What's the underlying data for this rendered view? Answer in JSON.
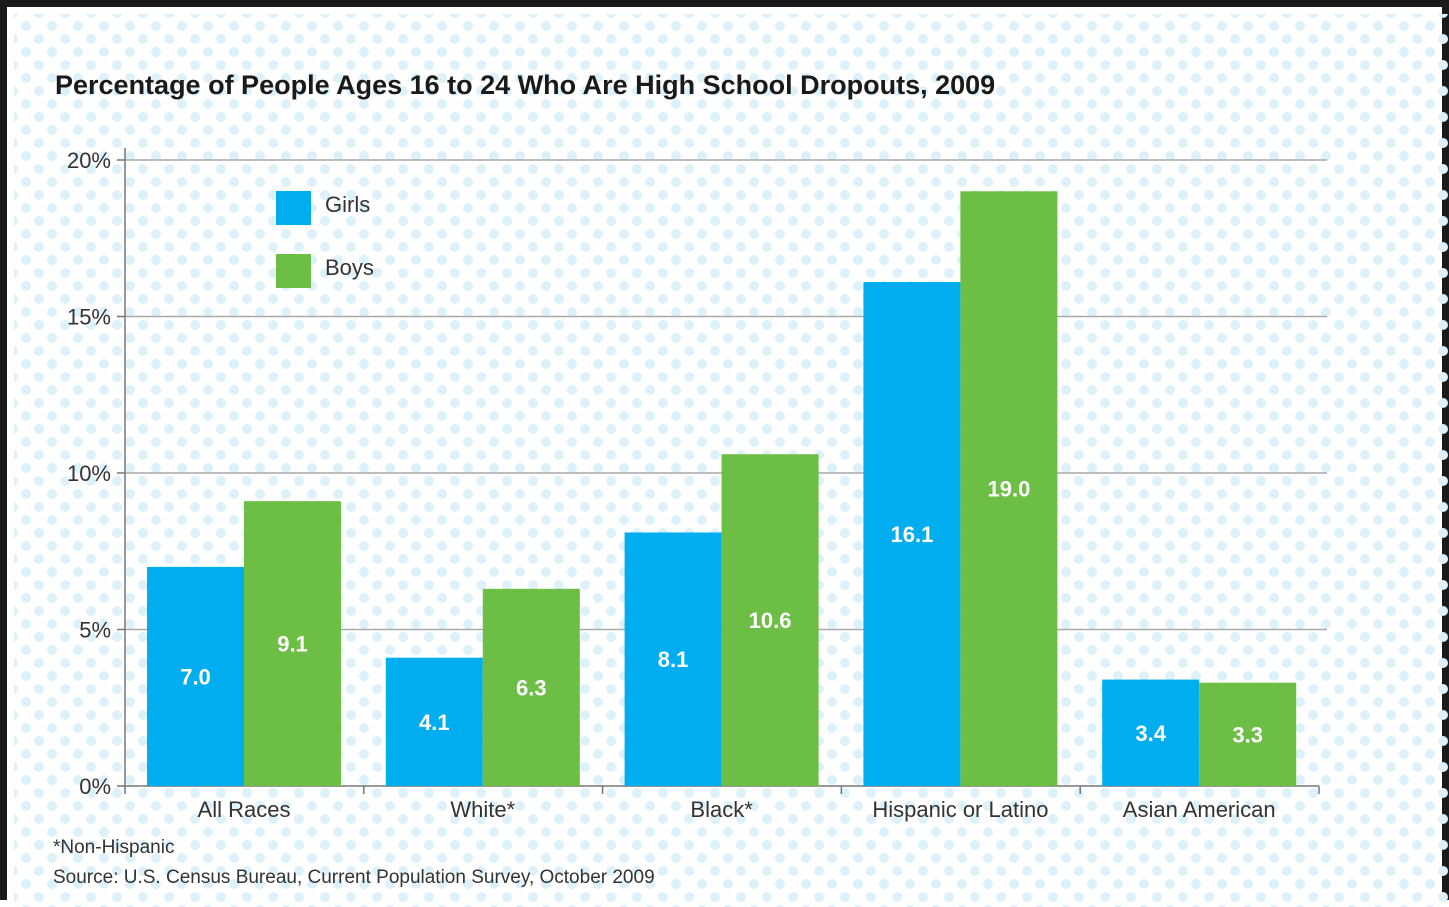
{
  "chart_data": {
    "type": "bar",
    "title": "Percentage of People Ages 16 to 24 Who Are High School Dropouts, 2009",
    "categories": [
      "All Races",
      "White*",
      "Black*",
      "Hispanic or Latino",
      "Asian American"
    ],
    "series": [
      {
        "name": "Girls",
        "color": "#00aeef",
        "values": [
          7.0,
          4.1,
          8.1,
          16.1,
          3.4
        ],
        "labels": [
          "7.0",
          "4.1",
          "8.1",
          "16.1",
          "3.4"
        ]
      },
      {
        "name": "Boys",
        "color": "#6dbe45",
        "values": [
          9.1,
          6.3,
          10.6,
          19.0,
          3.3
        ],
        "labels": [
          "9.1",
          "6.3",
          "10.6",
          "19.0",
          "3.3"
        ]
      }
    ],
    "ylim": [
      0,
      20
    ],
    "yticks": [
      {
        "value": 0,
        "label": "0%"
      },
      {
        "value": 5,
        "label": "5%"
      },
      {
        "value": 10,
        "label": "10%"
      },
      {
        "value": 15,
        "label": "15%"
      },
      {
        "value": 20,
        "label": "20%"
      }
    ],
    "grid": true,
    "legend_position": "top-left"
  },
  "footnote": "*Non-Hispanic",
  "source": "Source: U.S. Census Bureau, Current Population Survey, October 2009"
}
